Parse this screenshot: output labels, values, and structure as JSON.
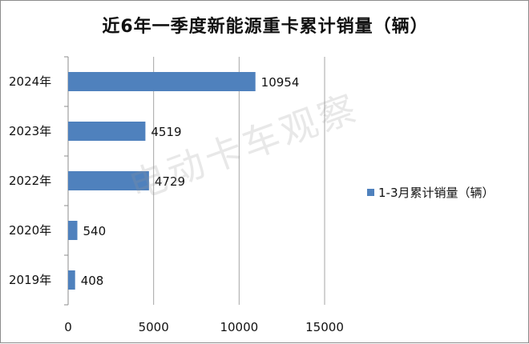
{
  "chart_data": {
    "type": "bar",
    "orientation": "horizontal",
    "title": "近6年一季度新能源重卡累计销量（辆）",
    "categories": [
      "2024年",
      "2023年",
      "2022年",
      "2020年",
      "2019年"
    ],
    "series": [
      {
        "name": "1-3月累计销量（辆）",
        "values": [
          10954,
          4519,
          4729,
          540,
          408
        ]
      }
    ],
    "xlim": [
      0,
      15000
    ],
    "xticks": [
      "0",
      "5000",
      "10000",
      "15000"
    ],
    "grid": true,
    "legend": "right",
    "bar_color": "#4f81bd",
    "grid_color": "#a6a6a6"
  },
  "watermark": "电动卡车观察"
}
